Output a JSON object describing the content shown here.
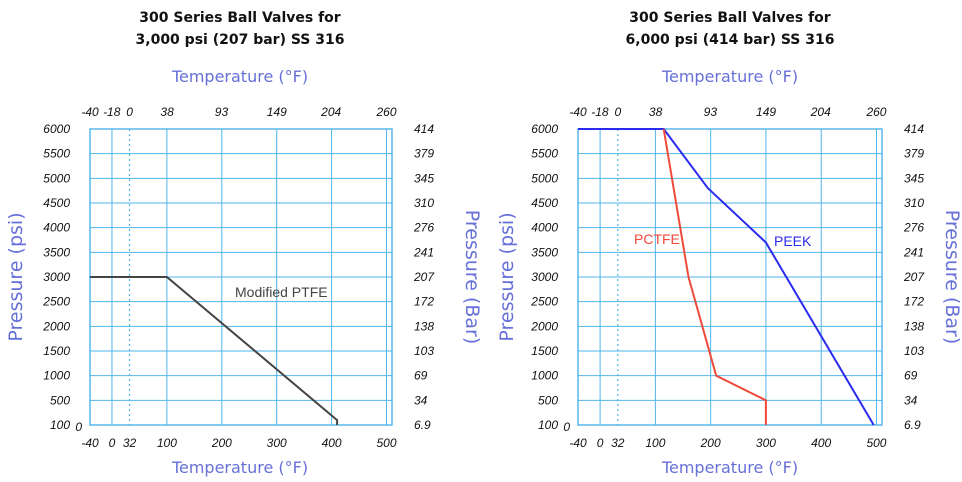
{
  "chart_data": [
    {
      "type": "line",
      "title_lines": [
        "300 Series Ball Valves for",
        "3,000 psi (207 bar) SS 316"
      ],
      "top_axis_title": "Temperature (°F)",
      "bottom_axis_title": "Temperature (°F)",
      "left_axis_title": "Pressure (psi)",
      "right_axis_title": "Pressure (Bar)",
      "bottom_ticks": [
        {
          "value": -40,
          "label": "-40"
        },
        {
          "value": 0,
          "label": "0"
        },
        {
          "value": 32,
          "label": "32"
        },
        {
          "value": 100,
          "label": "100"
        },
        {
          "value": 200,
          "label": "200"
        },
        {
          "value": 300,
          "label": "300"
        },
        {
          "value": 400,
          "label": "400"
        },
        {
          "value": 500,
          "label": "500"
        }
      ],
      "top_ticks": [
        {
          "value": -40,
          "label": "-40"
        },
        {
          "value": -0.4,
          "label": "-18"
        },
        {
          "value": 32,
          "label": "0"
        },
        {
          "value": 100.4,
          "label": "38"
        },
        {
          "value": 199.4,
          "label": "93"
        },
        {
          "value": 300.2,
          "label": "149"
        },
        {
          "value": 399.2,
          "label": "204"
        },
        {
          "value": 500,
          "label": "260"
        }
      ],
      "left_ticks": [
        {
          "value": 0,
          "label": "100"
        },
        {
          "value": 500,
          "label": "500"
        },
        {
          "value": 1000,
          "label": "1000"
        },
        {
          "value": 1500,
          "label": "1500"
        },
        {
          "value": 2000,
          "label": "2000"
        },
        {
          "value": 2500,
          "label": "2500"
        },
        {
          "value": 3000,
          "label": "3000"
        },
        {
          "value": 3500,
          "label": "3500"
        },
        {
          "value": 4000,
          "label": "4000"
        },
        {
          "value": 4500,
          "label": "4500"
        },
        {
          "value": 5000,
          "label": "5000"
        },
        {
          "value": 5500,
          "label": "5500"
        },
        {
          "value": 6000,
          "label": "6000"
        }
      ],
      "right_ticks": [
        {
          "value": 0,
          "label": "6.9"
        },
        {
          "value": 500,
          "label": "34"
        },
        {
          "value": 1000,
          "label": "69"
        },
        {
          "value": 1500,
          "label": "103"
        },
        {
          "value": 2000,
          "label": "138"
        },
        {
          "value": 2500,
          "label": "172"
        },
        {
          "value": 3000,
          "label": "207"
        },
        {
          "value": 3500,
          "label": "241"
        },
        {
          "value": 4000,
          "label": "276"
        },
        {
          "value": 4500,
          "label": "310"
        },
        {
          "value": 5000,
          "label": "345"
        },
        {
          "value": 5500,
          "label": "379"
        },
        {
          "value": 6000,
          "label": "414"
        }
      ],
      "zero_label": "0",
      "xlim": [
        -40,
        510
      ],
      "ylim": [
        0,
        6000
      ],
      "grid": true,
      "reference_x": 32,
      "series": [
        {
          "name": "Modified PTFE",
          "color": "#444444",
          "x": [
            -40,
            100,
            410,
            410
          ],
          "y": [
            3000,
            3000,
            100,
            0
          ]
        }
      ]
    },
    {
      "type": "line",
      "title_lines": [
        "300 Series Ball Valves for",
        "6,000 psi (414 bar) SS 316"
      ],
      "top_axis_title": "Temperature (°F)",
      "bottom_axis_title": "Temperature (°F)",
      "left_axis_title": "Pressure (psi)",
      "right_axis_title": "Pressure (Bar)",
      "bottom_ticks": [
        {
          "value": -40,
          "label": "-40"
        },
        {
          "value": 0,
          "label": "0"
        },
        {
          "value": 32,
          "label": "32"
        },
        {
          "value": 100,
          "label": "100"
        },
        {
          "value": 200,
          "label": "200"
        },
        {
          "value": 300,
          "label": "300"
        },
        {
          "value": 400,
          "label": "400"
        },
        {
          "value": 500,
          "label": "500"
        }
      ],
      "top_ticks": [
        {
          "value": -40,
          "label": "-40"
        },
        {
          "value": -0.4,
          "label": "-18"
        },
        {
          "value": 32,
          "label": "0"
        },
        {
          "value": 100.4,
          "label": "38"
        },
        {
          "value": 199.4,
          "label": "93"
        },
        {
          "value": 300.2,
          "label": "149"
        },
        {
          "value": 399.2,
          "label": "204"
        },
        {
          "value": 500,
          "label": "260"
        }
      ],
      "left_ticks": [
        {
          "value": 0,
          "label": "100"
        },
        {
          "value": 500,
          "label": "500"
        },
        {
          "value": 1000,
          "label": "1000"
        },
        {
          "value": 1500,
          "label": "1500"
        },
        {
          "value": 2000,
          "label": "2000"
        },
        {
          "value": 2500,
          "label": "2500"
        },
        {
          "value": 3000,
          "label": "3000"
        },
        {
          "value": 3500,
          "label": "3500"
        },
        {
          "value": 4000,
          "label": "4000"
        },
        {
          "value": 4500,
          "label": "4500"
        },
        {
          "value": 5000,
          "label": "5000"
        },
        {
          "value": 5500,
          "label": "5500"
        },
        {
          "value": 6000,
          "label": "6000"
        }
      ],
      "right_ticks": [
        {
          "value": 0,
          "label": "6.9"
        },
        {
          "value": 500,
          "label": "34"
        },
        {
          "value": 1000,
          "label": "69"
        },
        {
          "value": 1500,
          "label": "103"
        },
        {
          "value": 2000,
          "label": "138"
        },
        {
          "value": 2500,
          "label": "172"
        },
        {
          "value": 3000,
          "label": "207"
        },
        {
          "value": 3500,
          "label": "241"
        },
        {
          "value": 4000,
          "label": "276"
        },
        {
          "value": 4500,
          "label": "310"
        },
        {
          "value": 5000,
          "label": "345"
        },
        {
          "value": 5500,
          "label": "379"
        },
        {
          "value": 6000,
          "label": "414"
        }
      ],
      "zero_label": "0",
      "xlim": [
        -40,
        510
      ],
      "ylim": [
        0,
        6000
      ],
      "grid": true,
      "reference_x": 32,
      "series": [
        {
          "name": "PEEK",
          "color": "#2b2bf0",
          "x": [
            -40,
            115,
            195,
            300,
            495
          ],
          "y": [
            6000,
            6000,
            4800,
            3700,
            0
          ]
        },
        {
          "name": "PCTFE",
          "color": "#f04a3a",
          "x": [
            115,
            160,
            210,
            300,
            300
          ],
          "y": [
            6000,
            3000,
            1000,
            500,
            0
          ]
        }
      ]
    }
  ]
}
